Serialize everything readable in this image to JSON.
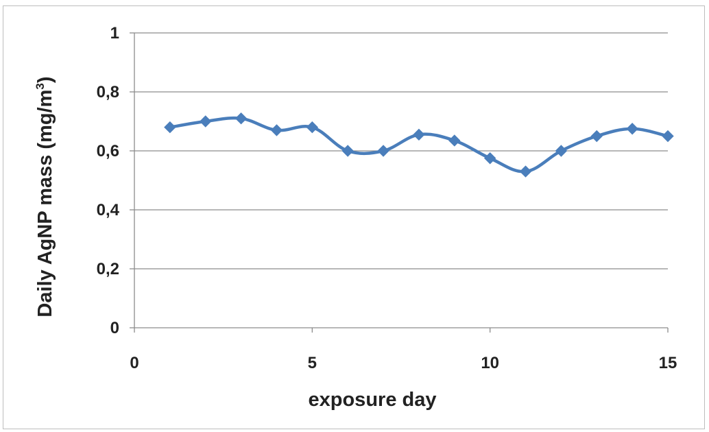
{
  "chart_data": {
    "type": "line",
    "title": "",
    "xlabel": "exposure day",
    "ylabel": {
      "main": "Daily AgNP mass (mg/m",
      "superscript": "3",
      "close": ")"
    },
    "xlim": [
      0,
      15
    ],
    "ylim": [
      0,
      1
    ],
    "xticks": [
      0,
      5,
      10,
      15
    ],
    "xtick_labels": [
      "0",
      "5",
      "10",
      "15"
    ],
    "yticks": [
      0,
      0.2,
      0.4,
      0.6,
      0.8,
      1
    ],
    "ytick_labels": [
      "0",
      "0,2",
      "0,4",
      "0,6",
      "0,8",
      "1"
    ],
    "grid": "horizontal",
    "legend": "none",
    "series_color": "#4a7ebb",
    "marker": "diamond",
    "smooth": true,
    "series": [
      {
        "x": [
          1,
          2,
          3,
          4,
          5,
          6,
          7,
          8,
          9,
          10,
          11,
          12,
          13,
          14,
          15
        ],
        "values": [
          0.68,
          0.7,
          0.71,
          0.67,
          0.68,
          0.6,
          0.6,
          0.655,
          0.635,
          0.575,
          0.53,
          0.6,
          0.65,
          0.675,
          0.65
        ]
      }
    ]
  }
}
